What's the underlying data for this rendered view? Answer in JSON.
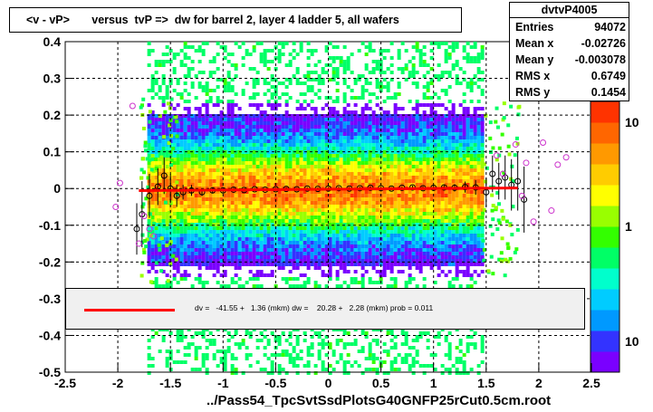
{
  "title": "<v - vP>       versus  tvP =>  dw for barrel 2, layer 4 ladder 5, all wafers",
  "stats": {
    "name": "dvtvP4005",
    "rows": [
      {
        "key": "Entries",
        "value": "94072"
      },
      {
        "key": "Mean x",
        "value": "-0.02726"
      },
      {
        "key": "Mean y",
        "value": "-0.003078"
      },
      {
        "key": "RMS x",
        "value": "0.6749"
      },
      {
        "key": "RMS y",
        "value": "0.1454"
      }
    ]
  },
  "fit_text": "dv =   -41.55 +   1.36 (mkm) dw =    20.28 +   2.28 (mkm) prob = 0.011",
  "file_label": "../Pass54_TpcSvtSsdPlotsG40GNFP25rCut0.5cm.root",
  "colors": {
    "fit_line": "#ff0000",
    "profile_marker": "#cc33cc",
    "profile_points": "#000000"
  },
  "chart_data": {
    "type": "heatmap",
    "xlim": [
      -2.5,
      2.5
    ],
    "ylim": [
      -0.5,
      0.4
    ],
    "x_ticks": [
      "-2.5",
      "-2",
      "-1.5",
      "-1",
      "-0.5",
      "0",
      "0.5",
      "1",
      "1.5",
      "2",
      "2.5"
    ],
    "x_tick_values": [
      -2.5,
      -2,
      -1.5,
      -1,
      -0.5,
      0,
      0.5,
      1,
      1.5,
      2,
      2.5
    ],
    "y_ticks": [
      "-0.5",
      "-0.4",
      "-0.3",
      "-0.2",
      "-0.1",
      "0",
      "0.1",
      "0.2",
      "0.3",
      "0.4"
    ],
    "y_tick_values": [
      -0.5,
      -0.4,
      -0.3,
      -0.2,
      -0.1,
      0,
      0.1,
      0.2,
      0.3,
      0.4
    ],
    "colorbar_ticks": [
      "10",
      "1",
      "10"
    ],
    "colorbar_tick_values": [
      10,
      1,
      0.1
    ],
    "grid": true,
    "fit": {
      "x_range": [
        -1.8,
        1.8
      ],
      "y_start": -0.0055,
      "y_end": 0.0015
    },
    "profile_open": [
      {
        "x": -1.82,
        "y": -0.11
      },
      {
        "x": -1.77,
        "y": -0.07
      },
      {
        "x": -1.7,
        "y": -0.02
      },
      {
        "x": -1.62,
        "y": 0.005
      },
      {
        "x": -1.56,
        "y": 0.035
      },
      {
        "x": -1.5,
        "y": 0.0
      },
      {
        "x": -1.44,
        "y": -0.02
      },
      {
        "x": -1.38,
        "y": -0.01
      },
      {
        "x": -1.3,
        "y": -0.005
      },
      {
        "x": -1.2,
        "y": -0.01
      },
      {
        "x": -1.1,
        "y": -0.005
      },
      {
        "x": -1.0,
        "y": -0.005
      },
      {
        "x": -0.9,
        "y": -0.003
      },
      {
        "x": -0.8,
        "y": -0.004
      },
      {
        "x": -0.7,
        "y": -0.002
      },
      {
        "x": -0.6,
        "y": -0.003
      },
      {
        "x": -0.5,
        "y": -0.002
      },
      {
        "x": -0.4,
        "y": -0.001
      },
      {
        "x": -0.3,
        "y": -0.002
      },
      {
        "x": -0.2,
        "y": 0.0
      },
      {
        "x": -0.1,
        "y": -0.001
      },
      {
        "x": 0.0,
        "y": 0.0
      },
      {
        "x": 0.1,
        "y": 0.001
      },
      {
        "x": 0.2,
        "y": 0.0
      },
      {
        "x": 0.3,
        "y": 0.001
      },
      {
        "x": 0.4,
        "y": 0.002
      },
      {
        "x": 0.5,
        "y": 0.001
      },
      {
        "x": 0.6,
        "y": 0.0
      },
      {
        "x": 0.7,
        "y": 0.002
      },
      {
        "x": 0.8,
        "y": 0.003
      },
      {
        "x": 0.9,
        "y": 0.001
      },
      {
        "x": 1.0,
        "y": 0.002
      },
      {
        "x": 1.1,
        "y": 0.003
      },
      {
        "x": 1.2,
        "y": 0.002
      },
      {
        "x": 1.3,
        "y": 0.004
      },
      {
        "x": 1.4,
        "y": 0.003
      },
      {
        "x": 1.5,
        "y": -0.01
      },
      {
        "x": 1.56,
        "y": 0.04
      },
      {
        "x": 1.62,
        "y": 0.02
      },
      {
        "x": 1.68,
        "y": 0.03
      },
      {
        "x": 1.74,
        "y": 0.01
      },
      {
        "x": 1.8,
        "y": 0.02
      },
      {
        "x": 1.86,
        "y": -0.03
      }
    ],
    "profile_errors": [
      0.07,
      0.09,
      0.06,
      0.05,
      0.05,
      0.04,
      0.03,
      0.02,
      0.015,
      0.01,
      0.008,
      0.006,
      0.005,
      0.004,
      0.004,
      0.004,
      0.004,
      0.004,
      0.004,
      0.004,
      0.004,
      0.004,
      0.004,
      0.004,
      0.004,
      0.004,
      0.004,
      0.004,
      0.004,
      0.005,
      0.005,
      0.006,
      0.008,
      0.01,
      0.015,
      0.02,
      0.04,
      0.05,
      0.05,
      0.06,
      0.07,
      0.08,
      0.09
    ],
    "profile_magenta": [
      {
        "x": -2.02,
        "y": -0.05
      },
      {
        "x": -1.98,
        "y": 0.015
      },
      {
        "x": -1.86,
        "y": 0.225
      },
      {
        "x": -1.8,
        "y": -0.15
      },
      {
        "x": -1.75,
        "y": -0.075
      },
      {
        "x": -1.7,
        "y": -0.11
      },
      {
        "x": -1.66,
        "y": -0.13
      },
      {
        "x": 1.6,
        "y": 0.09
      },
      {
        "x": 1.66,
        "y": 0.04
      },
      {
        "x": 1.78,
        "y": 0.12
      },
      {
        "x": 1.84,
        "y": -0.02
      },
      {
        "x": 1.88,
        "y": 0.07
      },
      {
        "x": 1.95,
        "y": -0.09
      },
      {
        "x": 2.04,
        "y": 0.125
      },
      {
        "x": 2.12,
        "y": -0.06
      },
      {
        "x": 2.18,
        "y": 0.065
      },
      {
        "x": 2.26,
        "y": 0.085
      }
    ]
  }
}
